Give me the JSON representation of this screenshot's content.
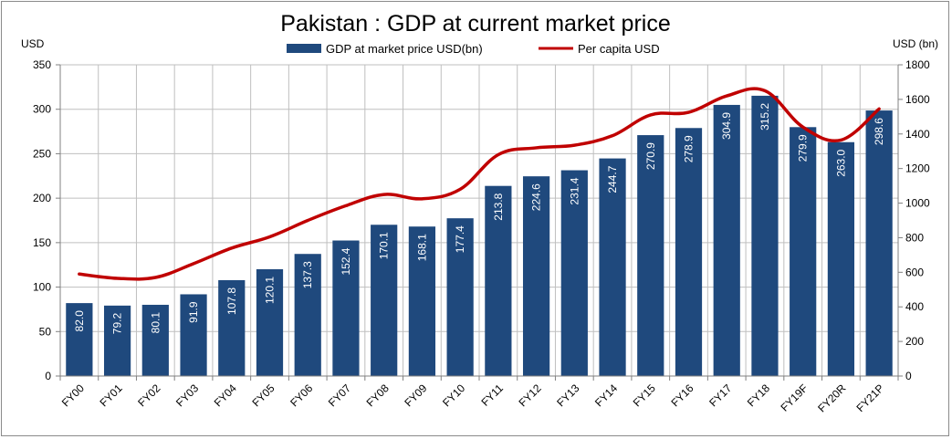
{
  "chart_data": {
    "type": "bar",
    "title": "Pakistan : GDP at current market price",
    "left_unit": "USD",
    "right_unit": "USD (bn)",
    "categories": [
      "FY00",
      "FY01",
      "FY02",
      "FY03",
      "FY04",
      "FY05",
      "FY06",
      "FY07",
      "FY08",
      "FY09",
      "FY10",
      "FY11",
      "FY12",
      "FY13",
      "FY14",
      "FY15",
      "FY16",
      "FY17",
      "FY18",
      "FY19F",
      "FY20R",
      "FY21P"
    ],
    "series": [
      {
        "name": "GDP at market price USD(bn)",
        "type": "bar",
        "axis": "left",
        "color": "#1f497d",
        "values": [
          82.0,
          79.2,
          80.1,
          91.9,
          107.8,
          120.1,
          137.3,
          152.4,
          170.1,
          168.1,
          177.4,
          213.8,
          224.6,
          231.4,
          244.7,
          270.9,
          278.9,
          304.9,
          315.2,
          279.9,
          263.0,
          298.6
        ],
        "labels": [
          "82.0",
          "79.2",
          "80.1",
          "91.9",
          "107.8",
          "120.1",
          "137.3",
          "152.4",
          "170.1",
          "168.1",
          "177.4",
          "213.8",
          "224.6",
          "231.4",
          "244.7",
          "270.9",
          "278.9",
          "304.9",
          "315.2",
          "279.9",
          "263.0",
          "298.6"
        ]
      },
      {
        "name": "Per capita USD",
        "type": "line",
        "axis": "right",
        "color": "#c00000",
        "values": [
          590,
          565,
          570,
          650,
          740,
          805,
          900,
          985,
          1050,
          1025,
          1080,
          1280,
          1320,
          1335,
          1390,
          1510,
          1525,
          1620,
          1650,
          1440,
          1365,
          1545
        ]
      }
    ],
    "ylim_left": [
      0,
      350
    ],
    "yticks_left": [
      "0",
      "50",
      "100",
      "150",
      "200",
      "250",
      "300",
      "350"
    ],
    "ylim_right": [
      0,
      1800
    ],
    "yticks_right": [
      "0",
      "200",
      "400",
      "600",
      "800",
      "1000",
      "1200",
      "1400",
      "1600",
      "1800"
    ],
    "grid": true,
    "legend": "top"
  }
}
